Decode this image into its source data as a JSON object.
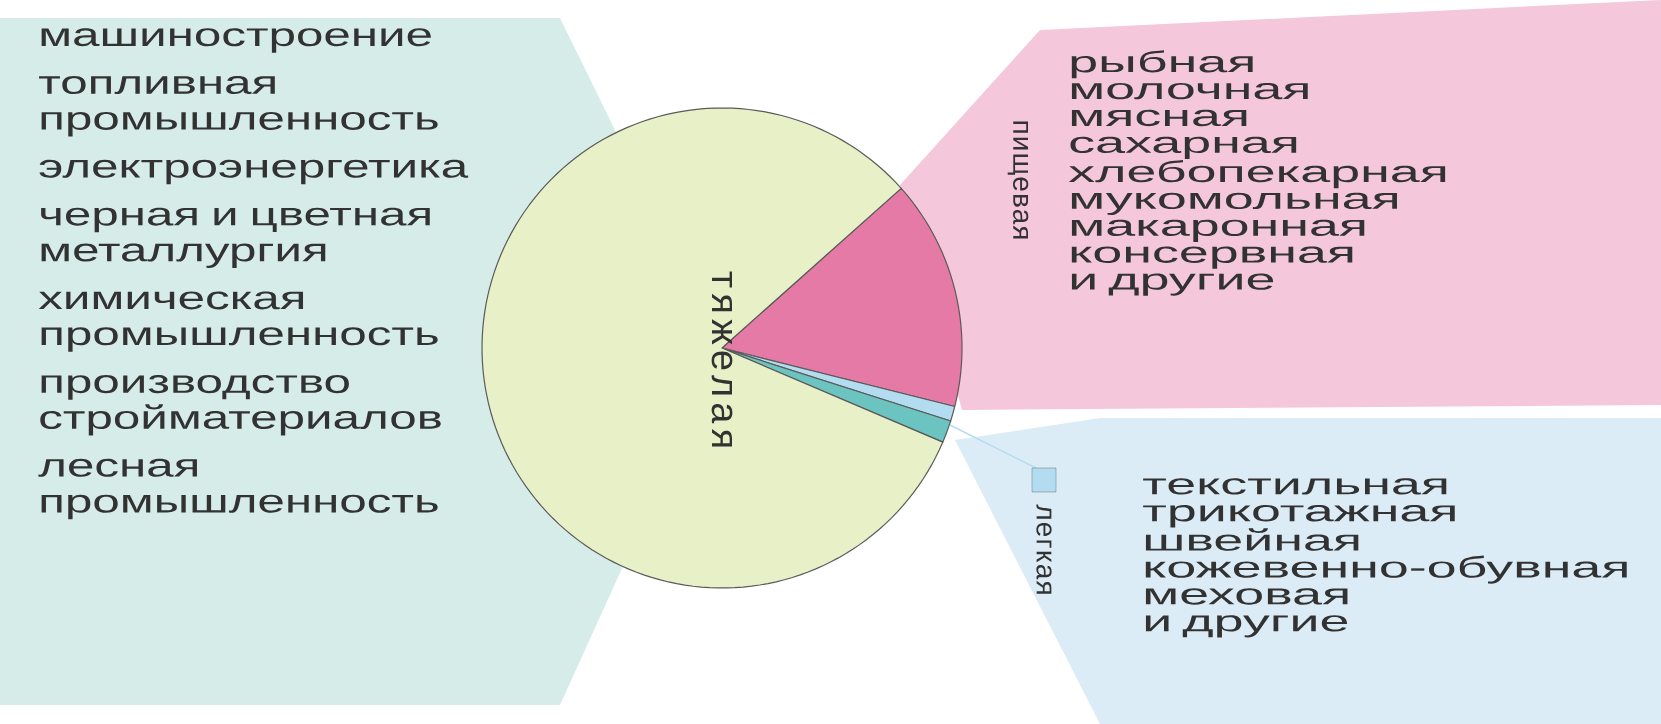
{
  "chart_data": {
    "type": "pie",
    "categories": [
      "пищевая",
      "легкая",
      null,
      "тяжелая"
    ],
    "values": [
      15.5,
      1,
      1.5,
      82
    ],
    "colors": [
      "#e67aa6",
      "#b4dcf0",
      "#6cc4c0",
      "#e8f0c8"
    ],
    "annotations": [
      "машиностроение",
      "топливная промышленность",
      "электроэнергетика",
      "черная и цветная металлургия",
      "химическая промышленность",
      "производство стройматериалов",
      "лесная промышленность",
      "рыбная",
      "молочная",
      "мясная",
      "сахарная",
      "хлебопекарная",
      "мукомольная",
      "макаронная",
      "консервная",
      "и другие",
      "текстильная",
      "трикотажная",
      "швейная",
      "кожевенно-обувная",
      "меховая",
      "и другие"
    ]
  }
}
